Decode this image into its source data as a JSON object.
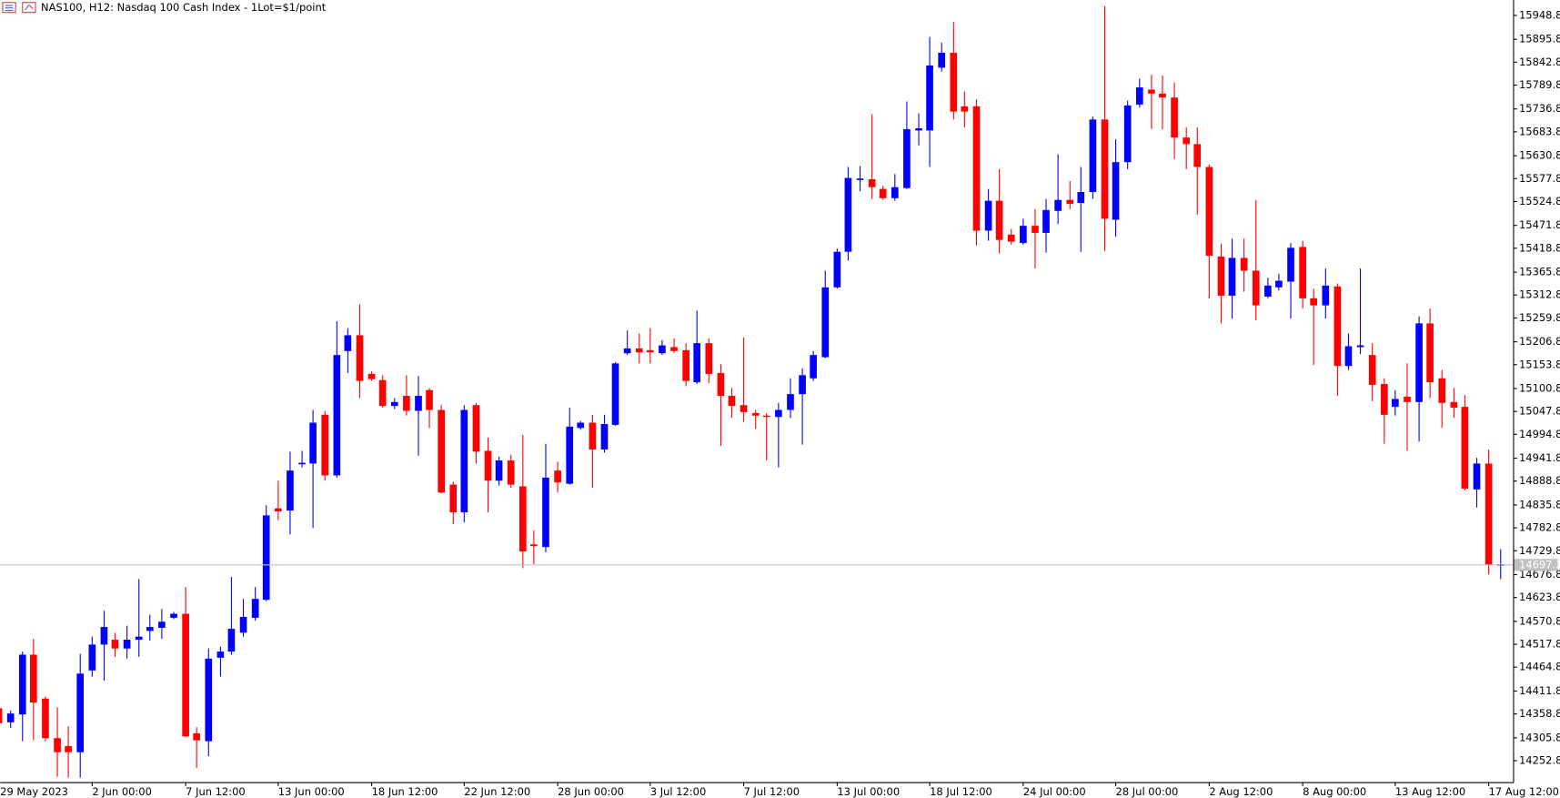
{
  "chart_data": {
    "type": "candlestick",
    "title": "NAS100, H12:  Nasdaq 100 Cash Index - 1Lot=$1/point",
    "categories": [
      "29 May 2023",
      null,
      null,
      null,
      null,
      null,
      null,
      null,
      "2 Jun 00:00",
      null,
      null,
      null,
      null,
      null,
      null,
      null,
      "7 Jun 12:00",
      null,
      null,
      null,
      null,
      null,
      null,
      null,
      "13 Jun 00:00",
      null,
      null,
      null,
      null,
      null,
      null,
      null,
      "18 Jun 12:00",
      null,
      null,
      null,
      null,
      null,
      null,
      null,
      "22 Jun 12:00",
      null,
      null,
      null,
      null,
      null,
      null,
      null,
      "28 Jun 00:00",
      null,
      null,
      null,
      null,
      null,
      null,
      null,
      "3 Jul 12:00",
      null,
      null,
      null,
      null,
      null,
      null,
      null,
      "7 Jul 12:00",
      null,
      null,
      null,
      null,
      null,
      null,
      null,
      "13 Jul 00:00",
      null,
      null,
      null,
      null,
      null,
      null,
      null,
      "18 Jul 12:00",
      null,
      null,
      null,
      null,
      null,
      null,
      null,
      "24 Jul 00:00",
      null,
      null,
      null,
      null,
      null,
      null,
      null,
      "28 Jul 00:00",
      null,
      null,
      null,
      null,
      null,
      null,
      null,
      "2 Aug 12:00",
      null,
      null,
      null,
      null,
      null,
      null,
      null,
      "8 Aug 00:00",
      null,
      null,
      null,
      null,
      null,
      null,
      null,
      "13 Aug 12:00",
      null,
      null,
      null,
      null,
      null,
      null,
      null,
      "17 Aug 12:00",
      null
    ],
    "open": [
      14371,
      14339,
      14357,
      14493,
      14393,
      14303,
      14285,
      14271,
      14457,
      14516,
      14527,
      14507,
      14527,
      14547,
      14554,
      14577,
      14586,
      14314,
      14296,
      14486,
      14500,
      14543,
      14577,
      14618,
      14826,
      14821,
      14926,
      14928,
      15039,
      14901,
      15184,
      15220,
      15132,
      15118,
      15059,
      15082,
      15048,
      15095,
      15050,
      14880,
      14817,
      15061,
      14957,
      14889,
      14935,
      14876,
      14744,
      14738,
      14912,
      14882,
      15009,
      15021,
      14960,
      15016,
      15179,
      15190,
      15186,
      15179,
      15193,
      15186,
      15113,
      15202,
      15134,
      15082,
      15061,
      15043,
      15037,
      15034,
      15050,
      15086,
      15122,
      15170,
      15329,
      15410,
      15573,
      15575,
      15553,
      15532,
      15555,
      15686,
      15686,
      15829,
      15863,
      15741,
      15741,
      15458,
      15526,
      15449,
      15430,
      15469,
      15453,
      15503,
      15528,
      15521,
      15546,
      15711,
      15483,
      15614,
      15745,
      15779,
      15770,
      15761,
      15670,
      15655,
      15603,
      15399,
      15310,
      15396,
      15367,
      15308,
      15329,
      15342,
      15421,
      15304,
      15288,
      15331,
      15150,
      15193,
      15175,
      15109,
      15057,
      15080,
      15068,
      15247,
      15122,
      15068,
      15057,
      14869,
      14928,
      14697
    ],
    "high": [
      14375,
      14366,
      14500,
      14529,
      14398,
      14373,
      14330,
      14495,
      14534,
      14593,
      14543,
      14559,
      14665,
      14584,
      14597,
      14590,
      14647,
      14328,
      14507,
      14511,
      14670,
      14620,
      14647,
      14833,
      14889,
      14955,
      14957,
      15050,
      15048,
      15252,
      15236,
      15290,
      15138,
      15129,
      15077,
      15129,
      15127,
      15100,
      15061,
      14887,
      15061,
      15066,
      14987,
      14944,
      14948,
      14993,
      14776,
      14973,
      14932,
      15055,
      15025,
      15039,
      15039,
      15159,
      15231,
      15224,
      15236,
      15209,
      15213,
      15202,
      15276,
      15213,
      15154,
      15100,
      15215,
      15050,
      15043,
      15066,
      15122,
      15145,
      15184,
      15367,
      15417,
      15603,
      15605,
      15723,
      15560,
      15587,
      15752,
      15725,
      15899,
      15886,
      15933,
      15775,
      15757,
      15553,
      15598,
      15462,
      15485,
      15507,
      15530,
      15632,
      15571,
      15603,
      15718,
      15969,
      15666,
      15754,
      15804,
      15813,
      15811,
      15795,
      15693,
      15693,
      15609,
      15428,
      15440,
      15440,
      15528,
      15351,
      15360,
      15430,
      15435,
      15326,
      15372,
      15338,
      15224,
      15372,
      15202,
      15122,
      15095,
      15156,
      15263,
      15281,
      15141,
      15100,
      15084,
      14941,
      14960,
      14733
    ],
    "low": [
      14335,
      14326,
      14296,
      14298,
      14296,
      14215,
      14213,
      14213,
      14443,
      14434,
      14488,
      14484,
      14488,
      14525,
      14529,
      14574,
      14305,
      14235,
      14262,
      14443,
      14493,
      14534,
      14570,
      14615,
      14799,
      14767,
      14919,
      14781,
      14889,
      14896,
      15134,
      15077,
      15116,
      15055,
      15052,
      15037,
      14946,
      15009,
      14860,
      14790,
      14794,
      14928,
      14817,
      14878,
      14873,
      14690,
      14699,
      14726,
      14862,
      14880,
      15005,
      14873,
      14953,
      15014,
      15175,
      15156,
      15156,
      15175,
      15179,
      15104,
      15109,
      15111,
      14968,
      15032,
      15023,
      15007,
      14935,
      14919,
      15032,
      14971,
      15116,
      15168,
      15326,
      15390,
      15548,
      15530,
      15528,
      15526,
      15553,
      15652,
      15603,
      15820,
      15711,
      15693,
      15424,
      15435,
      15406,
      15426,
      15426,
      15372,
      15408,
      15473,
      15507,
      15410,
      15530,
      15412,
      15444,
      15598,
      15738,
      15689,
      15689,
      15621,
      15598,
      15494,
      15304,
      15247,
      15258,
      15319,
      15254,
      15304,
      15322,
      15258,
      15281,
      15152,
      15258,
      15082,
      15141,
      15177,
      15070,
      14973,
      15037,
      14957,
      14978,
      15077,
      15009,
      15032,
      14867,
      14828,
      14676,
      14665
    ],
    "close": [
      14337,
      14359,
      14493,
      14384,
      14303,
      14271,
      14271,
      14450,
      14516,
      14556,
      14507,
      14527,
      14534,
      14556,
      14568,
      14586,
      14307,
      14298,
      14484,
      14500,
      14552,
      14579,
      14620,
      14810,
      14819,
      14912,
      14928,
      15021,
      14901,
      15175,
      15220,
      15116,
      15120,
      15059,
      15068,
      15048,
      15082,
      15050,
      14862,
      14817,
      15050,
      14955,
      14889,
      14935,
      14880,
      14728,
      14740,
      14896,
      14885,
      15012,
      15021,
      14960,
      15018,
      15156,
      15190,
      15181,
      15181,
      15197,
      15184,
      15116,
      15202,
      15132,
      15082,
      15059,
      15045,
      15037,
      15034,
      15050,
      15086,
      15129,
      15175,
      15329,
      15410,
      15578,
      15575,
      15557,
      15532,
      15557,
      15689,
      15691,
      15834,
      15863,
      15729,
      15729,
      15458,
      15526,
      15437,
      15433,
      15469,
      15453,
      15505,
      15528,
      15519,
      15546,
      15711,
      15485,
      15614,
      15743,
      15784,
      15770,
      15761,
      15670,
      15655,
      15603,
      15401,
      15310,
      15396,
      15367,
      15288,
      15333,
      15344,
      15419,
      15304,
      15288,
      15333,
      15150,
      15195,
      15197,
      15107,
      15039,
      15075,
      15068,
      15247,
      15113,
      15066,
      15055,
      14871,
      14928,
      14697,
      14697.3
    ],
    "up_color": "#0000ff",
    "down_color": "#ff0000",
    "current_price": 14697.3,
    "ylim": [
      14203,
      15983
    ],
    "yticks": [
      14252.8,
      14305.8,
      14358.8,
      14411.8,
      14464.8,
      14517.8,
      14570.8,
      14623.8,
      14676.8,
      14729.8,
      14782.8,
      14835.8,
      14888.8,
      14941.8,
      14994.8,
      15047.8,
      15100.8,
      15153.8,
      15206.8,
      15259.8,
      15312.8,
      15365.8,
      15418.8,
      15471.8,
      15524.8,
      15577.8,
      15630.8,
      15683.8,
      15736.8,
      15789.8,
      15842.8,
      15895.8,
      15948.8
    ],
    "grid": false
  }
}
